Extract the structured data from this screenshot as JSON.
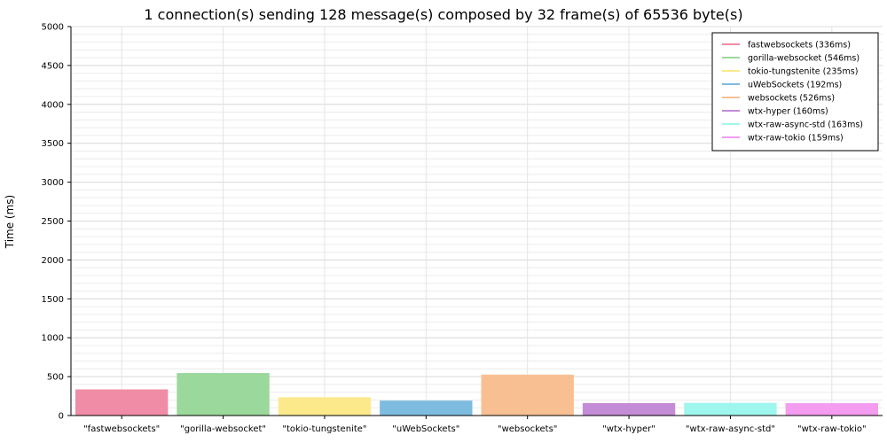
{
  "chart_data": {
    "type": "bar",
    "title": "1 connection(s) sending 128 message(s) composed by 32 frame(s) of 65536 byte(s)",
    "xlabel": "",
    "ylabel": "Time (ms)",
    "ylim": [
      0,
      5000
    ],
    "yticks": [
      0,
      500,
      1000,
      1500,
      2000,
      2500,
      3000,
      3500,
      4000,
      4500,
      5000
    ],
    "grid": true,
    "legend_position": "top-right",
    "categories": [
      "\"fastwebsockets\"",
      "\"gorilla-websocket\"",
      "\"tokio-tungstenite\"",
      "\"uWebSockets\"",
      "\"websockets\"",
      "\"wtx-hyper\"",
      "\"wtx-raw-async-std\"",
      "\"wtx-raw-tokio\""
    ],
    "values": [
      336,
      546,
      235,
      192,
      526,
      160,
      163,
      159
    ],
    "colors": [
      "#f08ca5",
      "#9bd89b",
      "#fbe98c",
      "#7dbcdf",
      "#f8bf93",
      "#c48cd6",
      "#9ff6ee",
      "#f39cf0"
    ],
    "legend": [
      "fastwebsockets (336ms)",
      "gorilla-websocket (546ms)",
      "tokio-tungstenite (235ms)",
      "uWebSockets (192ms)",
      "websockets (526ms)",
      "wtx-hyper (160ms)",
      "wtx-raw-async-std (163ms)",
      "wtx-raw-tokio (159ms)"
    ]
  }
}
